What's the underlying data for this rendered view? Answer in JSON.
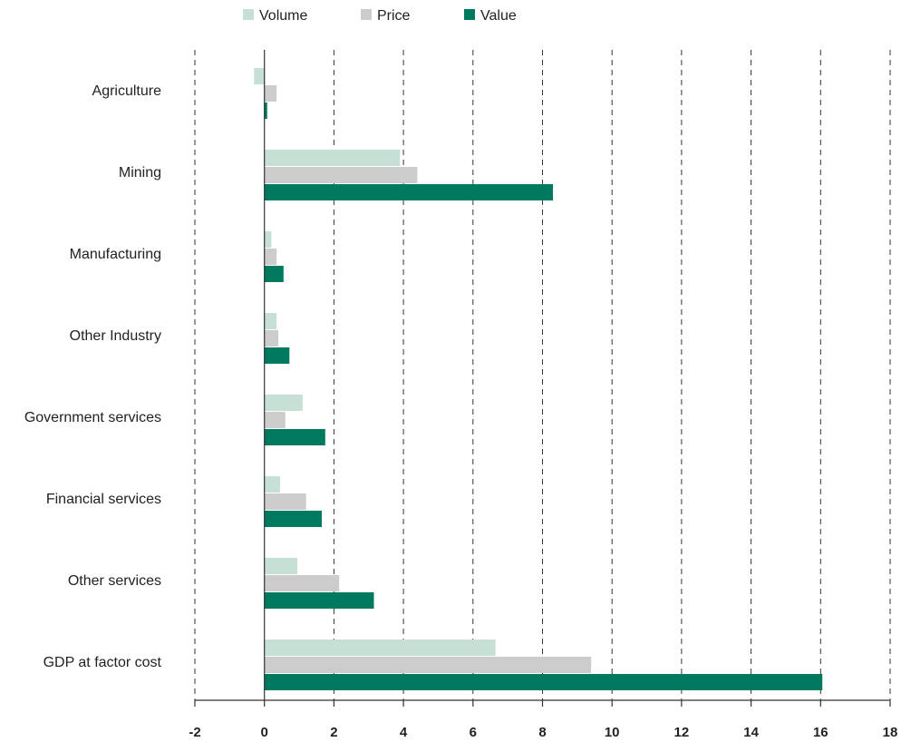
{
  "chart_data": {
    "type": "bar",
    "orientation": "horizontal",
    "title": "",
    "xlabel": "",
    "ylabel": "",
    "categories": [
      "Agriculture",
      "Mining",
      "Manufacturing",
      "Other Industry",
      "Government services",
      "Financial services",
      "Other services",
      "GDP at factor cost"
    ],
    "series": [
      {
        "name": "Volume",
        "color": "#c6e0d6",
        "values": [
          -0.3,
          3.9,
          0.2,
          0.35,
          1.1,
          0.45,
          0.95,
          6.65
        ]
      },
      {
        "name": "Price",
        "color": "#cccccc",
        "values": [
          0.35,
          4.4,
          0.35,
          0.4,
          0.6,
          1.2,
          2.15,
          9.4
        ]
      },
      {
        "name": "Value",
        "color": "#007a5e",
        "values": [
          0.08,
          8.3,
          0.55,
          0.72,
          1.75,
          1.65,
          3.15,
          16.05
        ]
      }
    ],
    "xlim": [
      -2,
      18
    ],
    "xticks": [
      "-2",
      "0",
      "2",
      "4",
      "6",
      "8",
      "10",
      "12",
      "14",
      "16",
      "18"
    ],
    "grid": "vertical dashed",
    "legend_position": "top"
  }
}
